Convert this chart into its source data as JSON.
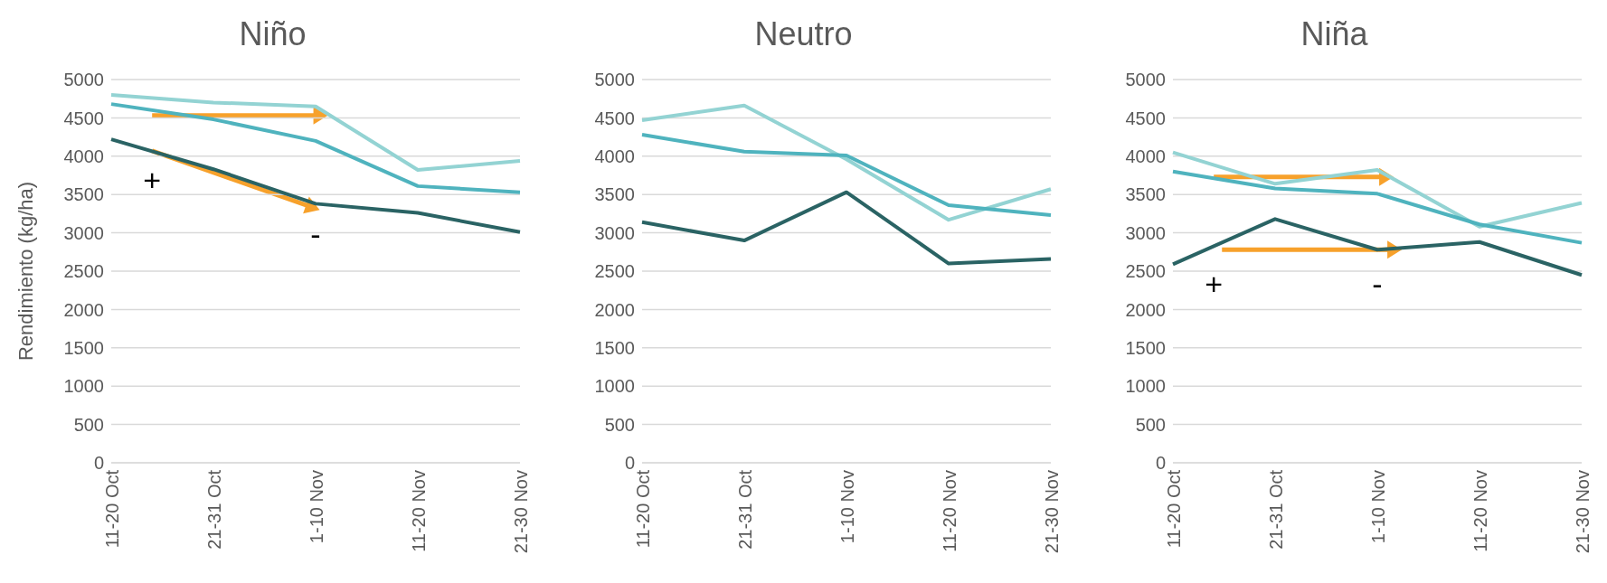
{
  "chart_data": [
    {
      "type": "line",
      "title": "Niño",
      "ylabel": "Rendimiento (kg/ha)",
      "categories": [
        "11-20 Oct",
        "21-31 Oct",
        "1-10 Nov",
        "11-20 Nov",
        "21-30 Nov"
      ],
      "ylim": [
        0,
        5000
      ],
      "yticks": [
        0,
        500,
        1000,
        1500,
        2000,
        2500,
        3000,
        3500,
        4000,
        4500,
        5000
      ],
      "grid": "y",
      "marker": "none",
      "series": [
        {
          "color": "#93d3d3",
          "values": [
            4800,
            4700,
            4650,
            3820,
            3940
          ]
        },
        {
          "color": "#4fb3be",
          "values": [
            4680,
            4480,
            4200,
            3610,
            3530
          ]
        },
        {
          "color": "#2a6364",
          "values": [
            4220,
            3830,
            3380,
            3260,
            3010
          ]
        }
      ],
      "annotations": [
        "+",
        "-"
      ]
    },
    {
      "type": "line",
      "title": "Neutro",
      "categories": [
        "11-20 Oct",
        "21-31 Oct",
        "1-10 Nov",
        "11-20 Nov",
        "21-30 Nov"
      ],
      "ylim": [
        0,
        5000
      ],
      "yticks": [
        0,
        500,
        1000,
        1500,
        2000,
        2500,
        3000,
        3500,
        4000,
        4500,
        5000
      ],
      "grid": "y",
      "marker": "none",
      "series": [
        {
          "color": "#93d3d3",
          "values": [
            4470,
            4660,
            3960,
            3170,
            3570
          ]
        },
        {
          "color": "#4fb3be",
          "values": [
            4280,
            4060,
            4010,
            3360,
            3230
          ]
        },
        {
          "color": "#2a6364",
          "values": [
            3140,
            2900,
            3530,
            2600,
            2660
          ]
        }
      ]
    },
    {
      "type": "line",
      "title": "Niña",
      "categories": [
        "11-20 Oct",
        "21-31 Oct",
        "1-10 Nov",
        "11-20 Nov",
        "21-30 Nov"
      ],
      "ylim": [
        0,
        5000
      ],
      "yticks": [
        0,
        500,
        1000,
        1500,
        2000,
        2500,
        3000,
        3500,
        4000,
        4500,
        5000
      ],
      "grid": "y",
      "marker": "none",
      "series": [
        {
          "color": "#93d3d3",
          "values": [
            4050,
            3640,
            3820,
            3080,
            3390
          ]
        },
        {
          "color": "#4fb3be",
          "values": [
            3800,
            3580,
            3510,
            3110,
            2870
          ]
        },
        {
          "color": "#2a6364",
          "values": [
            2590,
            3180,
            2780,
            2880,
            2450
          ]
        }
      ],
      "annotations": [
        "+",
        "-"
      ]
    }
  ]
}
